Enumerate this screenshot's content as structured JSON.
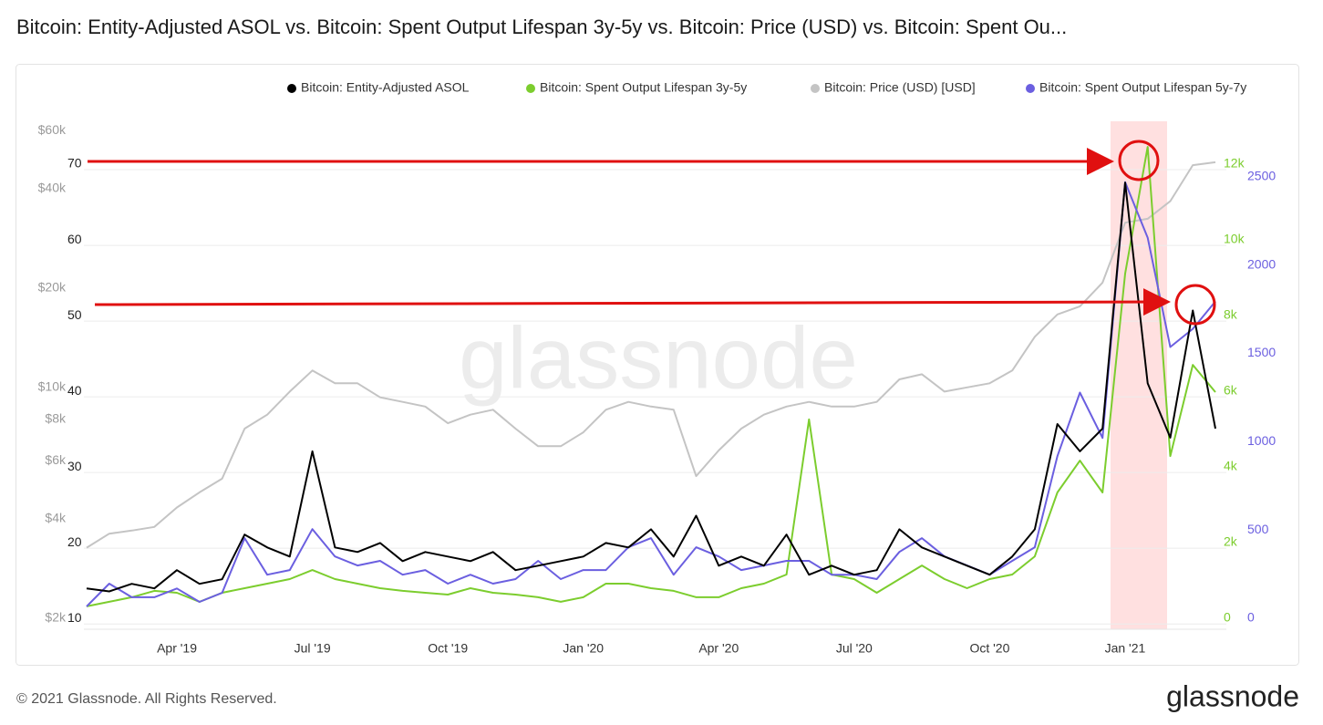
{
  "chart_data": {
    "type": "line",
    "title": "Bitcoin: Entity-Adjusted ASOL vs. Bitcoin: Spent Output Lifespan 3y-5y vs. Bitcoin: Price (USD) vs. Bitcoin: Spent Ou...",
    "watermark": "glassnode",
    "footer": "© 2021 Glassnode. All Rights Reserved.",
    "logo": "glassnode",
    "categories": [
      null,
      null,
      null,
      null,
      "Apr '19",
      null,
      null,
      null,
      null,
      null,
      "Jul '19",
      null,
      null,
      null,
      null,
      null,
      "Oct '19",
      null,
      null,
      null,
      null,
      null,
      "Jan '20",
      null,
      null,
      null,
      null,
      null,
      "Apr '20",
      null,
      null,
      null,
      null,
      null,
      "Jul '20",
      null,
      null,
      null,
      null,
      null,
      "Oct '20",
      null,
      null,
      null,
      null,
      null,
      "Jan '21",
      null,
      null,
      null,
      null
    ],
    "ylim": [
      9.3,
      79.4
    ],
    "yticks": [
      10,
      20,
      30,
      40,
      50,
      60,
      70
    ],
    "grid": true,
    "y2lim": [
      1925,
      78000
    ],
    "y2log": true,
    "y2ticks": [
      {
        "value": 2000,
        "label": "$2k"
      },
      {
        "value": 4000,
        "label": "$4k"
      },
      {
        "value": 6000,
        "label": "$6k"
      },
      {
        "value": 8000,
        "label": "$8k"
      },
      {
        "value": 10000,
        "label": "$10k"
      },
      {
        "value": 20000,
        "label": "$20k"
      },
      {
        "value": 40000,
        "label": "$40k"
      },
      {
        "value": 60000,
        "label": "$60k"
      }
    ],
    "y3lim": [
      -145,
      13880
    ],
    "y3ticks": [
      0,
      {
        "value": 2000,
        "label": "2k"
      },
      {
        "value": 4000,
        "label": "4k"
      },
      {
        "value": 6000,
        "label": "6k"
      },
      {
        "value": 8000,
        "label": "8k"
      },
      {
        "value": 10000,
        "label": "10k"
      },
      {
        "value": 12000,
        "label": "12k"
      }
    ],
    "y4lim": [
      -31,
      2974
    ],
    "y4ticks": [
      0,
      500,
      1000,
      1500,
      2000,
      2500
    ],
    "series": [
      {
        "name": "Bitcoin: Entity-Adjusted ASOL",
        "color": "#000000",
        "axis": "y",
        "values": [
          14.7,
          14.3,
          15.3,
          14.7,
          17.1,
          15.3,
          15.9,
          21.8,
          20.1,
          18.9,
          32.8,
          20.1,
          19.5,
          20.7,
          18.3,
          19.5,
          18.9,
          18.3,
          19.5,
          17.1,
          17.7,
          18.3,
          18.9,
          20.7,
          20.1,
          22.5,
          18.9,
          24.3,
          17.7,
          18.9,
          17.7,
          21.8,
          16.5,
          17.7,
          16.5,
          17.1,
          22.5,
          20.1,
          18.9,
          17.7,
          16.5,
          18.9,
          22.5,
          36.4,
          32.8,
          35.8,
          68.3,
          41.8,
          34.6,
          51.4,
          35.8
        ]
      },
      {
        "name": "Bitcoin: Spent Output Lifespan 3y-5y",
        "color": "#7ccd2e",
        "axis": "y3",
        "values": [
          460,
          580,
          700,
          870,
          820,
          580,
          820,
          940,
          1060,
          1180,
          1420,
          1180,
          1060,
          940,
          870,
          820,
          770,
          940,
          820,
          770,
          700,
          580,
          700,
          1060,
          1060,
          940,
          870,
          700,
          700,
          940,
          1060,
          1300,
          5400,
          1300,
          1180,
          820,
          1180,
          1540,
          1180,
          940,
          1180,
          1300,
          1780,
          3470,
          4310,
          3470,
          9250,
          12600,
          4430,
          6840,
          6120
        ]
      },
      {
        "name": "Bitcoin: Price (USD) [USD]",
        "color": "#c4c4c4",
        "axis": "y2",
        "values": [
          3400,
          3750,
          3830,
          3930,
          4500,
          5000,
          5500,
          7800,
          8600,
          10100,
          11700,
          10700,
          10700,
          9700,
          9400,
          9100,
          8100,
          8600,
          8900,
          7800,
          6900,
          6900,
          7600,
          8900,
          9400,
          9100,
          8900,
          5600,
          6700,
          7800,
          8600,
          9100,
          9400,
          9100,
          9100,
          9400,
          11000,
          11400,
          10100,
          10400,
          10700,
          11700,
          14800,
          17300,
          18300,
          21600,
          32800,
          33700,
          38100,
          49000,
          50000
        ]
      },
      {
        "name": "Bitcoin: Spent Output Lifespan 5y-7y",
        "color": "#6b5fe0",
        "axis": "y4",
        "values": [
          98,
          227,
          150,
          150,
          200,
          124,
          175,
          485,
          278,
          304,
          536,
          381,
          330,
          356,
          278,
          304,
          227,
          278,
          227,
          253,
          356,
          253,
          304,
          304,
          433,
          485,
          278,
          433,
          381,
          304,
          330,
          356,
          356,
          278,
          278,
          253,
          407,
          485,
          381,
          330,
          278,
          356,
          433,
          949,
          1309,
          1052,
          2500,
          2186,
          1567,
          1670,
          1825
        ]
      }
    ]
  }
}
